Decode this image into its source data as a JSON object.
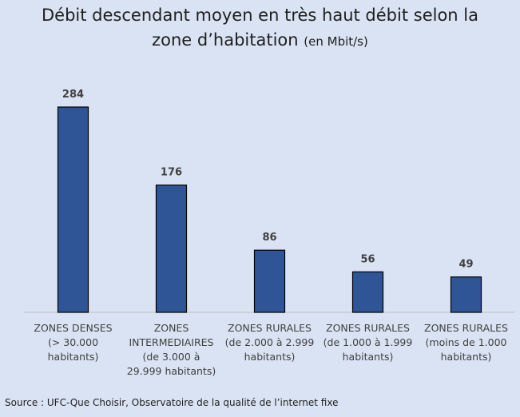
{
  "header": {
    "title_main": "Débit descendant moyen en très haut débit selon la",
    "title_line2": "zone d’habitation",
    "title_unit": "(en Mbit/s)"
  },
  "chart_data": {
    "type": "bar",
    "categories": [
      "ZONES DENSES\n(> 30.000\nhabitants)",
      "ZONES\nINTERMEDIAIRES\n(de 3.000 à\n29.999 habitants)",
      "ZONES RURALES\n(de 2.000 à 2.999\nhabitants)",
      "ZONES RURALES\n(de 1.000 à 1.999\nhabitants)",
      "ZONES RURALES\n(moins de 1.000\nhabitants)"
    ],
    "values": [
      284,
      176,
      86,
      56,
      49
    ],
    "ylim": [
      0,
      284
    ],
    "grid": false,
    "bar_color": "#2f5597",
    "background_color": "#dae3f3"
  },
  "footer": {
    "source": "Source : UFC-Que Choisir, Observatoire de la qualité de l’internet fixe"
  }
}
